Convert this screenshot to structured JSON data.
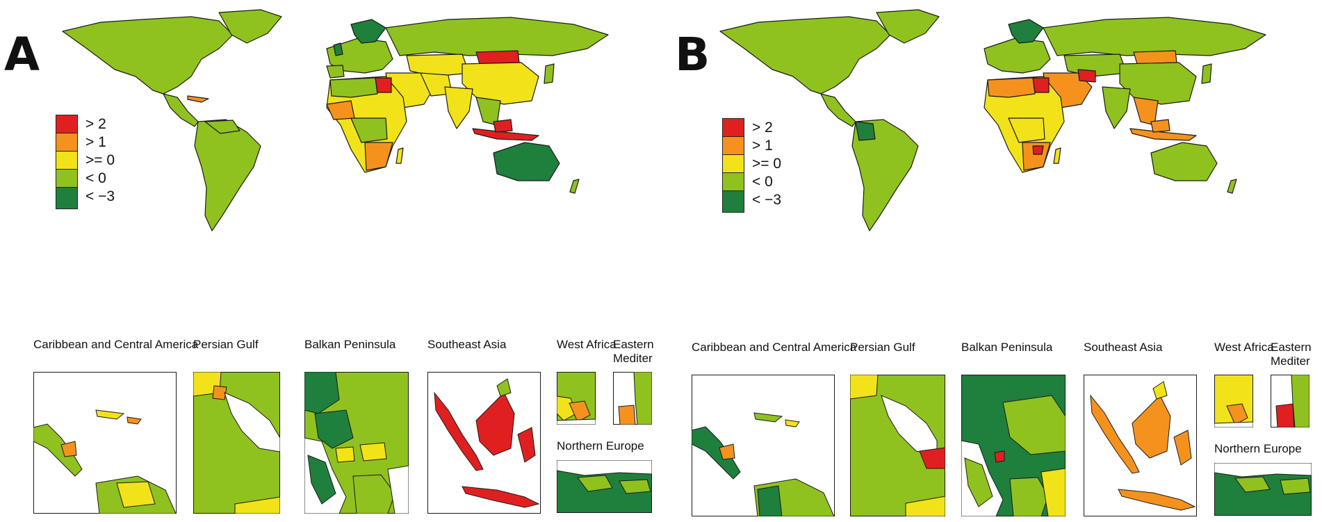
{
  "panels": [
    {
      "letter": "A",
      "legend": [
        {
          "label": "> 2",
          "color": "#e02020"
        },
        {
          "label": "> 1",
          "color": "#f5921e"
        },
        {
          "label": ">= 0",
          "color": "#f2e21a"
        },
        {
          "label": "< 0",
          "color": "#8fc21f"
        },
        {
          "label": "< −3",
          "color": "#1f7f3c"
        }
      ],
      "insets": [
        {
          "title": "Caribbean and Central America",
          "land": "#8fc21f"
        },
        {
          "title": "Persian Gulf",
          "land": "#8fc21f"
        },
        {
          "title": "Balkan Peninsula",
          "land": "#8fc21f"
        },
        {
          "title": "Southeast Asia",
          "land": "#8fc21f"
        },
        {
          "title": "West Africa",
          "land": "#f2e21a"
        },
        {
          "title": "Eastern Mediter",
          "land": "#8fc21f"
        },
        {
          "title": "Northern Europe",
          "land": "#1f7f3c"
        }
      ]
    },
    {
      "letter": "B",
      "legend": [
        {
          "label": "> 2",
          "color": "#e02020"
        },
        {
          "label": "> 1",
          "color": "#f5921e"
        },
        {
          "label": ">= 0",
          "color": "#f2e21a"
        },
        {
          "label": "< 0",
          "color": "#8fc21f"
        },
        {
          "label": "< −3",
          "color": "#1f7f3c"
        }
      ],
      "insets": [
        {
          "title": "Caribbean and Central America",
          "land": "#8fc21f"
        },
        {
          "title": "Persian Gulf",
          "land": "#8fc21f"
        },
        {
          "title": "Balkan Peninsula",
          "land": "#1f7f3c"
        },
        {
          "title": "Southeast Asia",
          "land": "#f5921e"
        },
        {
          "title": "West Africa",
          "land": "#f2e21a"
        },
        {
          "title": "Eastern Mediter",
          "land": "#e02020"
        },
        {
          "title": "Northern Europe",
          "land": "#1f7f3c"
        }
      ]
    }
  ],
  "colors": {
    "red": "#e02020",
    "orange": "#f5921e",
    "yellow": "#f2e21a",
    "green": "#8fc21f",
    "dark_green": "#1f7f3c",
    "border": "#1a1a1a"
  }
}
